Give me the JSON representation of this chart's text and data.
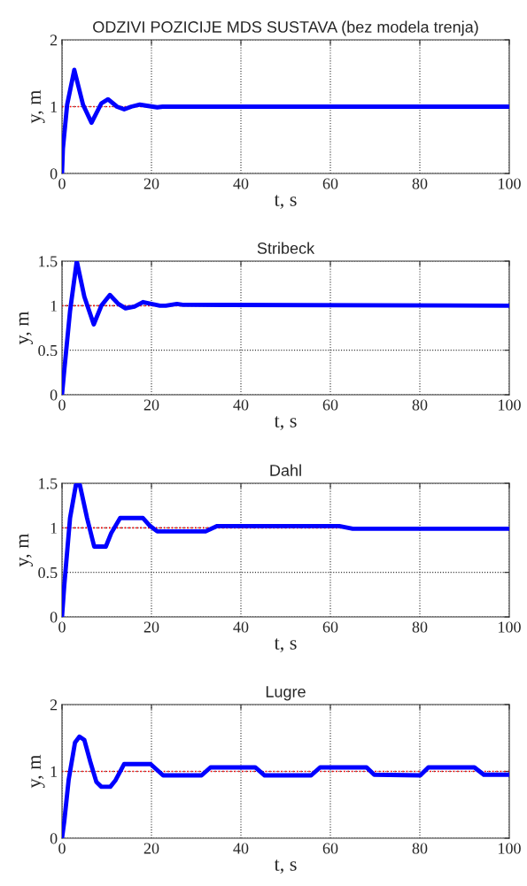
{
  "chart_data": [
    {
      "type": "line",
      "title": "ODZIVI POZICIJE MDS SUSTAVA (bez modela trenja)",
      "xlabel": "t, s",
      "ylabel": "y, m",
      "xlim": [
        0,
        100
      ],
      "ylim": [
        0,
        2
      ],
      "xticks": [
        0,
        20,
        40,
        60,
        80,
        100
      ],
      "yticks": [
        0,
        1,
        2
      ],
      "grid": true,
      "line_style": "solid",
      "series": [
        {
          "color": "#0000ff",
          "x": [
            0,
            0.2,
            1.15,
            2.75,
            4.7,
            6.6,
            8.8,
            10.3,
            12.3,
            13.9,
            15.5,
            17.4,
            19.3,
            21.3,
            22.5,
            100
          ],
          "values": [
            0,
            0.37,
            1.03,
            1.55,
            1.03,
            0.76,
            1.05,
            1.11,
            1.0,
            0.96,
            1.0,
            1.03,
            1.01,
            0.99,
            1.0,
            1.0
          ]
        }
      ],
      "ref_lines": [
        {
          "axis": "y",
          "value": 1,
          "color": "#ff0000",
          "line_style": "dotted"
        }
      ]
    },
    {
      "type": "line",
      "title": "Stribeck",
      "xlabel": "t, s",
      "ylabel": "y, m",
      "xlim": [
        0,
        100
      ],
      "ylim": [
        0,
        1.5
      ],
      "xticks": [
        0,
        20,
        40,
        60,
        80,
        100
      ],
      "yticks": [
        0,
        0.5,
        1,
        1.5
      ],
      "grid": true,
      "line_style": "solid",
      "series": [
        {
          "color": "#0000ff",
          "x": [
            0,
            0.5,
            1.8,
            3.3,
            5.0,
            7.1,
            8.8,
            10.7,
            12.6,
            14.2,
            16.2,
            18.1,
            20.0,
            21.9,
            23.2,
            25.7,
            27,
            100
          ],
          "values": [
            0,
            0.27,
            0.94,
            1.5,
            1.1,
            0.79,
            1.0,
            1.12,
            1.02,
            0.97,
            0.99,
            1.04,
            1.02,
            1.0,
            1.0,
            1.02,
            1.01,
            1.0
          ]
        }
      ],
      "ref_lines": [
        {
          "axis": "y",
          "value": 1,
          "color": "#ff0000",
          "line_style": "dotted"
        }
      ]
    },
    {
      "type": "line",
      "title": "Dahl",
      "xlabel": "t, s",
      "ylabel": "y, m",
      "xlim": [
        0,
        100
      ],
      "ylim": [
        0,
        1.5
      ],
      "xticks": [
        0,
        20,
        40,
        60,
        80,
        100
      ],
      "yticks": [
        0,
        0.5,
        1,
        1.5
      ],
      "grid": true,
      "line_style": "solid",
      "series": [
        {
          "color": "#0000ff",
          "x": [
            0,
            0.5,
            1.8,
            3.1,
            4.0,
            5.6,
            7.2,
            9.8,
            11.0,
            13.0,
            18.1,
            19.7,
            21.3,
            32.1,
            34.7,
            62,
            65,
            100
          ],
          "values": [
            0,
            0.35,
            1.11,
            1.48,
            1.48,
            1.11,
            0.79,
            0.79,
            0.94,
            1.11,
            1.11,
            1.02,
            0.96,
            0.96,
            1.02,
            1.02,
            0.99,
            0.99
          ]
        }
      ],
      "ref_lines": [
        {
          "axis": "y",
          "value": 1,
          "color": "#ff0000",
          "line_style": "dotted"
        }
      ]
    },
    {
      "type": "line",
      "title": "Lugre",
      "xlabel": "t, s",
      "ylabel": "y, m",
      "xlim": [
        0,
        100
      ],
      "ylim": [
        0,
        2
      ],
      "xticks": [
        0,
        20,
        40,
        60,
        80,
        100
      ],
      "yticks": [
        0,
        1,
        2
      ],
      "grid": true,
      "line_style": "solid",
      "series": [
        {
          "color": "#0000ff",
          "x": [
            0,
            0.5,
            1.5,
            2.9,
            3.9,
            5.0,
            6.3,
            7.7,
            8.8,
            10.8,
            11.9,
            13.9,
            19.8,
            22.6,
            31.2,
            33.2,
            43.2,
            45.3,
            55.7,
            57.7,
            68.1,
            69.8,
            80.1,
            81.9,
            92.2,
            94.3,
            100
          ],
          "values": [
            0,
            0.25,
            0.88,
            1.43,
            1.52,
            1.47,
            1.15,
            0.84,
            0.77,
            0.77,
            0.86,
            1.11,
            1.11,
            0.94,
            0.94,
            1.06,
            1.06,
            0.94,
            0.94,
            1.06,
            1.06,
            0.95,
            0.94,
            1.06,
            1.06,
            0.95,
            0.95
          ]
        }
      ],
      "ref_lines": [
        {
          "axis": "y",
          "value": 1,
          "color": "#ff0000",
          "line_style": "dotted"
        }
      ]
    }
  ]
}
